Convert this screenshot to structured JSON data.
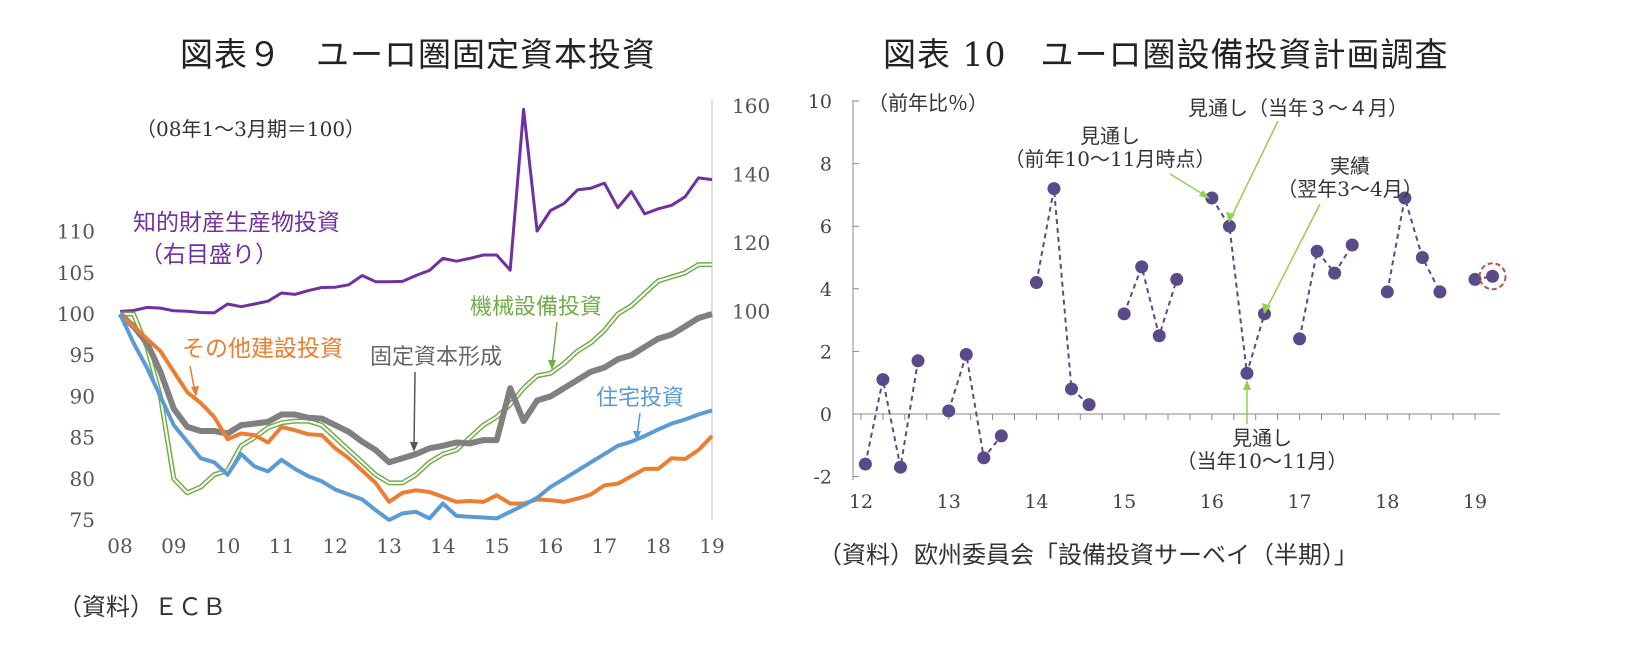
{
  "chart_data": [
    {
      "type": "line",
      "title": "図表９　ユーロ圏固定資本投資",
      "subtitle": "（08年1～3月期＝100）",
      "source": "（資料）ＥＣＢ",
      "x_tick_labels": [
        "08",
        "09",
        "10",
        "11",
        "12",
        "13",
        "14",
        "15",
        "16",
        "17",
        "18",
        "19"
      ],
      "y_left": {
        "ticks": [
          75,
          80,
          85,
          90,
          95,
          100,
          105,
          110
        ],
        "range": [
          75,
          112
        ]
      },
      "y_right": {
        "ticks": [
          100,
          120,
          140,
          160
        ],
        "range": [
          40,
          160
        ]
      },
      "x_range": [
        0,
        11
      ],
      "series": [
        {
          "name": "知的財産生産物投資",
          "name_line2": "（右目盛り）",
          "axis": "right",
          "color": "#7030a0",
          "x": [
            0,
            0.25,
            0.5,
            0.75,
            1,
            1.25,
            1.5,
            1.75,
            2,
            2.25,
            2.5,
            2.75,
            3,
            3.25,
            3.5,
            3.75,
            4,
            4.25,
            4.5,
            4.75,
            5,
            5.25,
            5.5,
            5.75,
            6,
            6.25,
            6.5,
            6.75,
            7,
            7.25,
            7.5,
            7.75,
            8,
            8.25,
            8.5,
            8.75,
            9,
            9.25,
            9.5,
            9.75,
            10,
            10.25,
            10.5,
            10.75,
            11
          ],
          "values": [
            100,
            100.3,
            101.2,
            101,
            100.2,
            100.1,
            99.7,
            99.6,
            102.2,
            101.4,
            102.2,
            103,
            105.4,
            105,
            106.1,
            107,
            107.1,
            107.8,
            110.5,
            108.7,
            108.7,
            108.8,
            110.5,
            112,
            115.5,
            114.7,
            115.5,
            116.5,
            116.5,
            112.1,
            159,
            123.5,
            129.5,
            131.5,
            135.5,
            136,
            137.5,
            130.3,
            135,
            128.5,
            130,
            131,
            133.5,
            139,
            138.5
          ]
        },
        {
          "name": "機械設備投資",
          "axis": "left",
          "color": "#70ad47",
          "style": "double",
          "x": [
            0,
            0.25,
            0.5,
            0.75,
            1,
            1.25,
            1.5,
            1.75,
            2,
            2.25,
            2.5,
            2.75,
            3,
            3.25,
            3.5,
            3.75,
            4,
            4.25,
            4.5,
            4.75,
            5,
            5.25,
            5.5,
            5.75,
            6,
            6.25,
            6.5,
            6.75,
            7,
            7.25,
            7.5,
            7.75,
            8,
            8.25,
            8.5,
            8.75,
            9,
            9.25,
            9.5,
            9.75,
            10,
            10.25,
            10.5,
            10.75,
            11
          ],
          "values": [
            100,
            100,
            96,
            90,
            80,
            78.3,
            79,
            80.5,
            81,
            84,
            85,
            86.2,
            86.8,
            87,
            87,
            86.5,
            85,
            83.5,
            82,
            80.5,
            79.5,
            79.5,
            80.5,
            82,
            83,
            83.5,
            85,
            86.5,
            87.5,
            89,
            91,
            92.5,
            92.8,
            94,
            95.5,
            96.5,
            98,
            100,
            101,
            102.5,
            104,
            104.5,
            105,
            106,
            106
          ]
        },
        {
          "name": "固定資本形成",
          "axis": "left",
          "color": "#808080",
          "width": 6,
          "x": [
            0,
            0.25,
            0.5,
            0.75,
            1,
            1.25,
            1.5,
            1.75,
            2,
            2.25,
            2.5,
            2.75,
            3,
            3.25,
            3.5,
            3.75,
            4,
            4.25,
            4.5,
            4.75,
            5,
            5.25,
            5.5,
            5.75,
            6,
            6.25,
            6.5,
            6.75,
            7,
            7.25,
            7.5,
            7.75,
            8,
            8.25,
            8.5,
            8.75,
            9,
            9.25,
            9.5,
            9.75,
            10,
            10.25,
            10.5,
            10.75,
            11
          ],
          "values": [
            100,
            98.5,
            96.5,
            93,
            88.5,
            86.3,
            85.8,
            85.8,
            85.5,
            86.5,
            86.7,
            86.9,
            87.8,
            87.8,
            87.4,
            87.3,
            86.5,
            85.7,
            84.5,
            83.5,
            82,
            82.5,
            83,
            83.7,
            84,
            84.4,
            84.3,
            84.7,
            84.7,
            91,
            87,
            89.5,
            90,
            91,
            92,
            93,
            93.5,
            94.5,
            95,
            96,
            97,
            97.5,
            98.5,
            99.5,
            100
          ]
        },
        {
          "name": "その他建設投資",
          "axis": "left",
          "color": "#ed7d31",
          "width": 4,
          "x": [
            0,
            0.25,
            0.5,
            0.75,
            1,
            1.25,
            1.5,
            1.75,
            2,
            2.25,
            2.5,
            2.75,
            3,
            3.25,
            3.5,
            3.75,
            4,
            4.25,
            4.5,
            4.75,
            5,
            5.25,
            5.5,
            5.75,
            6,
            6.25,
            6.5,
            6.75,
            7,
            7.25,
            7.5,
            7.75,
            8,
            8.25,
            8.5,
            8.75,
            9,
            9.25,
            9.5,
            9.75,
            10,
            10.25,
            10.5,
            10.75,
            11
          ],
          "values": [
            100,
            98.5,
            97,
            95.5,
            93,
            90.5,
            89.2,
            87.5,
            84.8,
            85.5,
            85.3,
            84.4,
            86.3,
            85.9,
            85.4,
            85.3,
            83.7,
            82.5,
            81,
            79.5,
            77.2,
            78.3,
            78.6,
            78.4,
            77.8,
            77.2,
            77.3,
            77.2,
            78,
            77,
            77,
            77.5,
            77.4,
            77.2,
            77.6,
            78.1,
            79.2,
            79.4,
            80.3,
            81.2,
            81.2,
            82.5,
            82.4,
            83.5,
            85.2
          ]
        },
        {
          "name": "住宅投資",
          "axis": "left",
          "color": "#5b9bd5",
          "width": 4,
          "x": [
            0,
            0.25,
            0.5,
            0.75,
            1,
            1.25,
            1.5,
            1.75,
            2,
            2.25,
            2.5,
            2.75,
            3,
            3.25,
            3.5,
            3.75,
            4,
            4.25,
            4.5,
            4.75,
            5,
            5.25,
            5.5,
            5.75,
            6,
            6.25,
            6.5,
            6.75,
            7,
            7.25,
            7.5,
            7.75,
            8,
            8.25,
            8.5,
            8.75,
            9,
            9.25,
            9.5,
            9.75,
            10,
            10.25,
            10.5,
            10.75,
            11
          ],
          "values": [
            100,
            96.5,
            93.5,
            90,
            86.5,
            84.5,
            82.5,
            82,
            80.5,
            83,
            81.5,
            80.9,
            82.3,
            81.2,
            80.3,
            79.7,
            78.7,
            78.1,
            77.5,
            76.2,
            75,
            75.8,
            76,
            75.2,
            77,
            75.5,
            75.4,
            75.3,
            75.2,
            76,
            76.8,
            77.7,
            79,
            80,
            81,
            82,
            83,
            84,
            84.5,
            85.2,
            86,
            86.7,
            87.2,
            87.8,
            88.3
          ]
        }
      ],
      "annotations": {
        "right_axis_series": "（右目盛り）"
      }
    },
    {
      "type": "scatter",
      "title": "図表 10　ユーロ圏設備投資計画調査",
      "ylabel": "（前年比％）",
      "source": "（資料）欧州委員会「設備投資サーベイ（半期）」",
      "x_tick_labels": [
        "12",
        "13",
        "14",
        "15",
        "16",
        "17",
        "18",
        "19"
      ],
      "y_ticks": [
        -2,
        0,
        2,
        4,
        6,
        8,
        10
      ],
      "ylim": [
        -2,
        10
      ],
      "xlim": [
        11.9,
        19.3
      ],
      "marker_color": "#5b4a8a",
      "line_color": "#5b4a8a",
      "groups": [
        {
          "x": [
            12.05,
            12.25,
            12.45,
            12.65
          ],
          "y": [
            -1.6,
            1.1,
            -1.7,
            1.7
          ]
        },
        {
          "x": [
            13.0,
            13.2,
            13.4,
            13.6
          ],
          "y": [
            0.1,
            1.9,
            -1.4,
            -0.7
          ]
        },
        {
          "x": [
            14.0,
            14.2,
            14.4,
            14.6
          ],
          "y": [
            4.2,
            7.2,
            0.8,
            0.3
          ]
        },
        {
          "x": [
            15.0,
            15.2,
            15.4,
            15.6
          ],
          "y": [
            3.2,
            4.7,
            2.5,
            4.3
          ]
        },
        {
          "x": [
            16.0,
            16.2,
            16.4,
            16.6
          ],
          "y": [
            6.9,
            6.0,
            1.3,
            3.2
          ]
        },
        {
          "x": [
            17.0,
            17.2,
            17.4,
            17.6
          ],
          "y": [
            2.4,
            5.2,
            4.5,
            5.4
          ]
        },
        {
          "x": [
            18.0,
            18.2,
            18.4,
            18.6
          ],
          "y": [
            3.9,
            6.9,
            5.0,
            3.9
          ]
        },
        {
          "x": [
            19.0,
            19.2
          ],
          "y": [
            4.3,
            4.4
          ]
        }
      ],
      "highlight_point": {
        "x": 19.2,
        "y": 4.4
      },
      "annotations": [
        {
          "id": "prev",
          "lines": [
            "見通し",
            "（前年10～11月時点）"
          ],
          "target": [
            16.0,
            6.9
          ]
        },
        {
          "id": "curr",
          "lines": [
            "見通し（当年３～４月）"
          ],
          "target": [
            16.2,
            6.0
          ]
        },
        {
          "id": "actual",
          "lines": [
            "実績",
            "（翌年3～4月）"
          ],
          "target": [
            16.6,
            3.2
          ]
        },
        {
          "id": "autumn",
          "lines": [
            "見通し",
            "（当年10～11月）"
          ],
          "target": [
            16.4,
            1.3
          ]
        }
      ]
    }
  ]
}
